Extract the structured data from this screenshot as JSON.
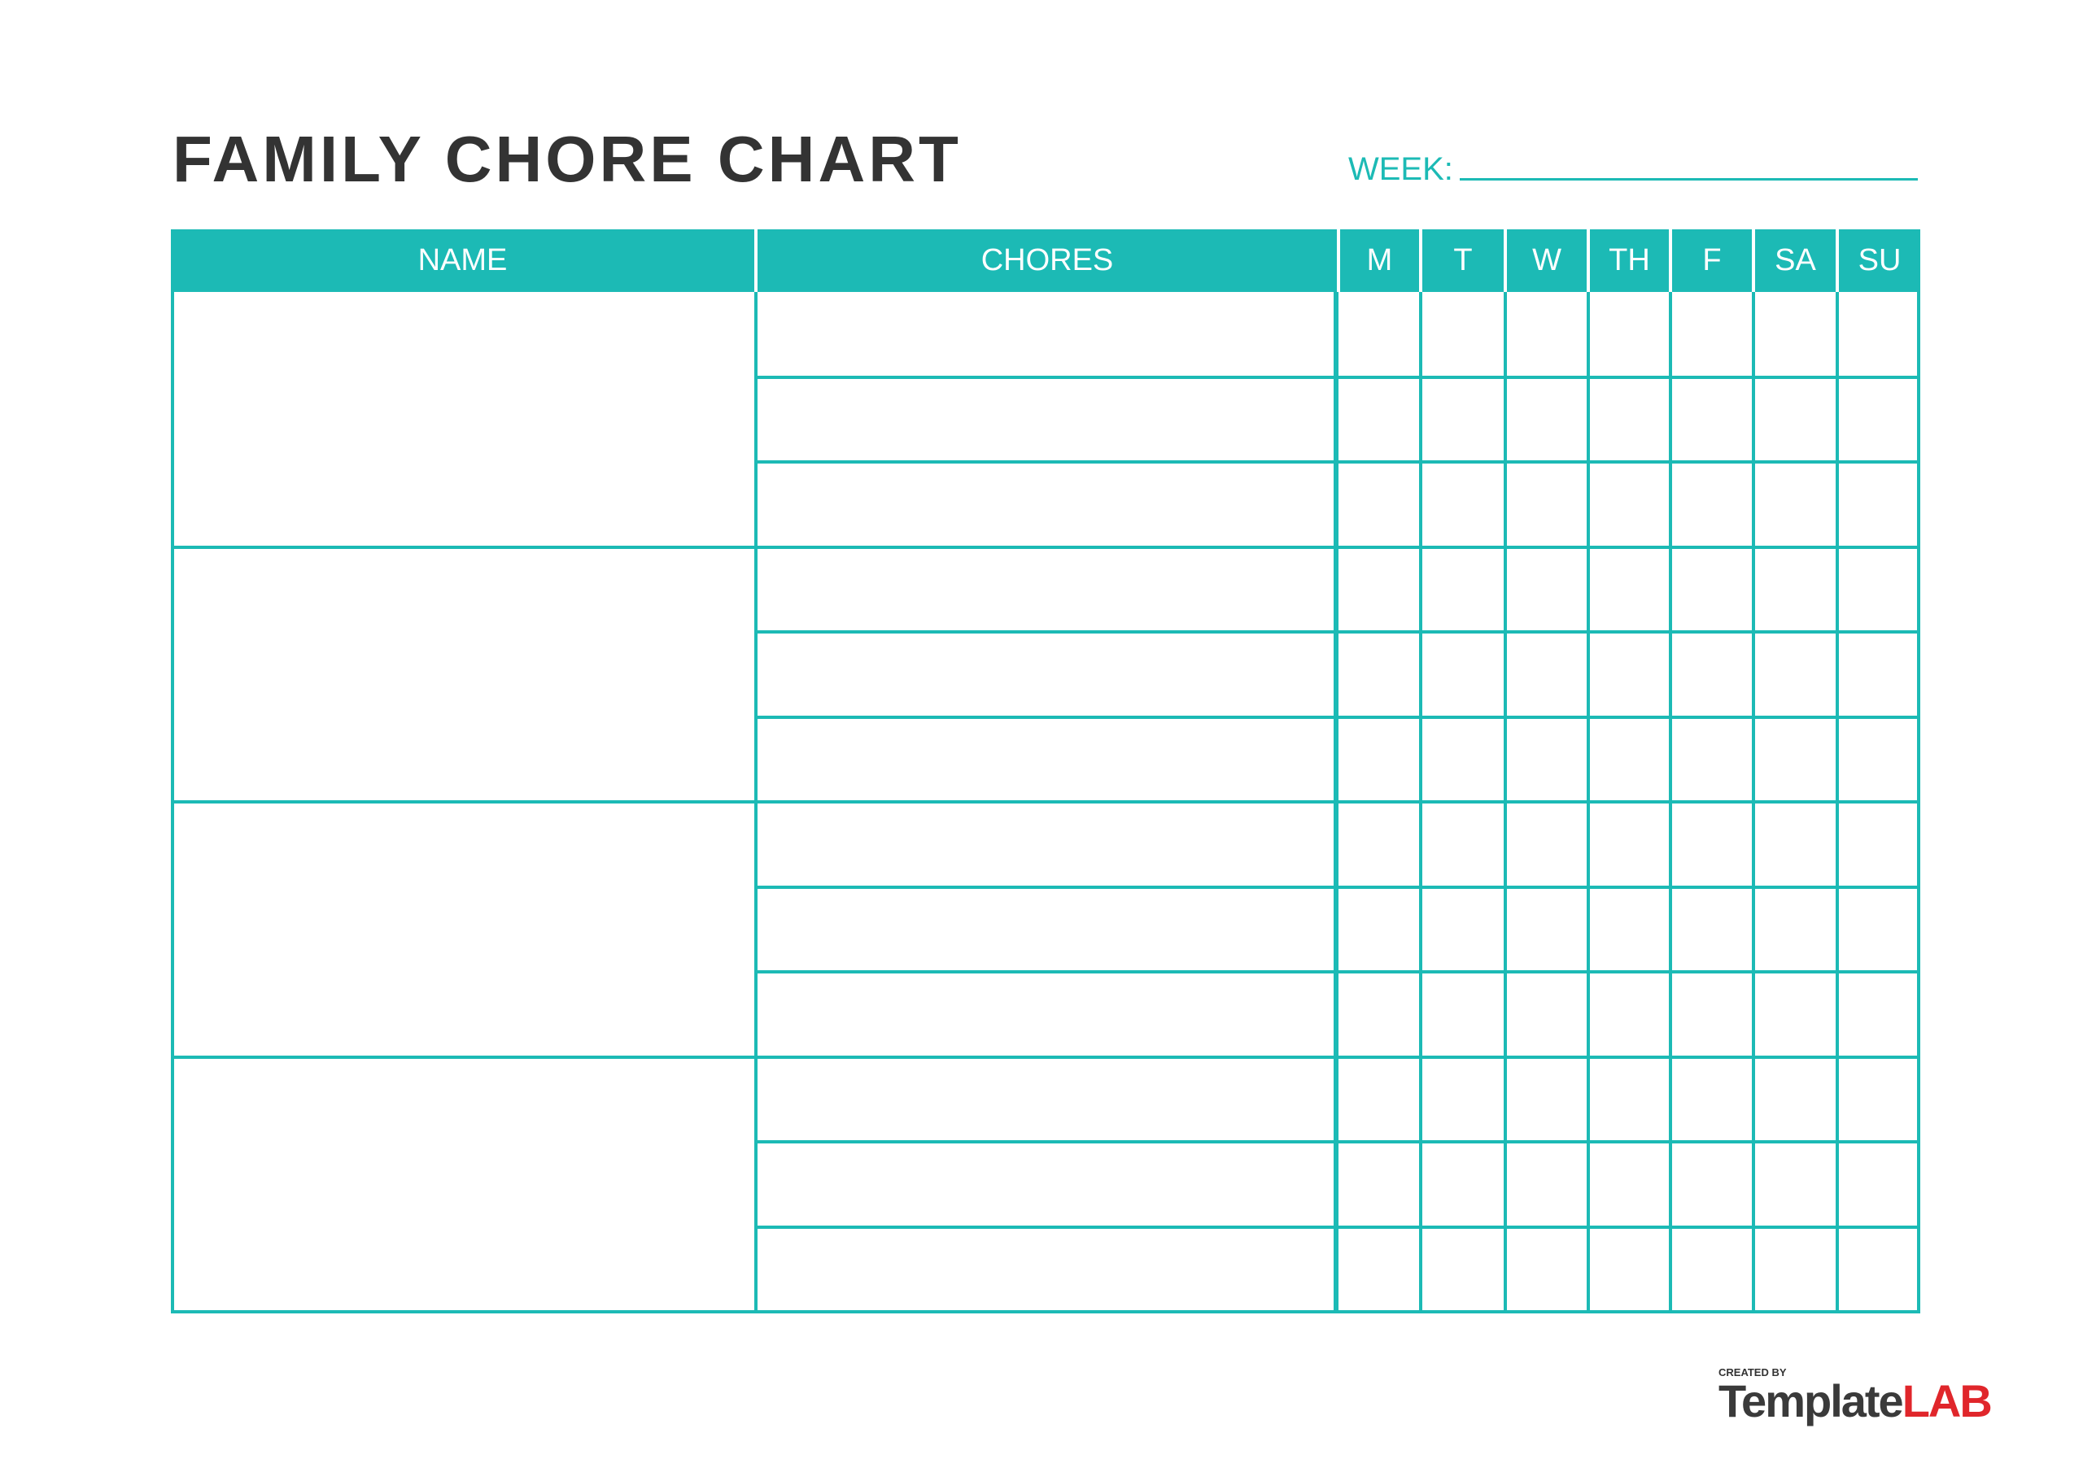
{
  "title": "FAMILY CHORE CHART",
  "week_label": "WEEK:",
  "week_value": "",
  "colors": {
    "accent": "#1cbab5",
    "title": "#333333",
    "logo_red": "#e0262b"
  },
  "table": {
    "headers": {
      "name": "NAME",
      "chores": "CHORES",
      "days": [
        "M",
        "T",
        "W",
        "TH",
        "F",
        "SA",
        "SU"
      ]
    },
    "people": 4,
    "chores_per_person": 3
  },
  "logo": {
    "created_by": "CREATED BY",
    "brand_part1": "Template",
    "brand_part2": "LAB"
  }
}
